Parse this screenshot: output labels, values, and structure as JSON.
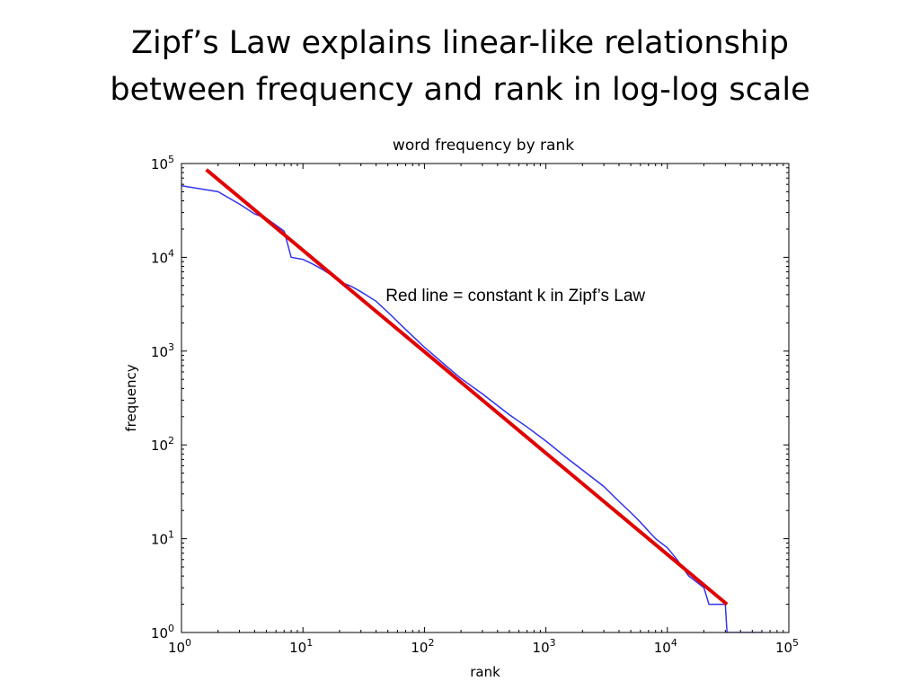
{
  "slide": {
    "title_line1": "Zipf’s Law explains linear-like relationship",
    "title_line2": "between frequency and rank in log-log scale"
  },
  "chart_data": {
    "type": "line",
    "title": "word frequency by rank",
    "xlabel": "rank",
    "ylabel": "frequency",
    "xscale": "log",
    "yscale": "log",
    "xlim": [
      1,
      100000
    ],
    "ylim": [
      1,
      100000
    ],
    "x_ticks": [
      {
        "base": "10",
        "exp": "0",
        "value": 1
      },
      {
        "base": "10",
        "exp": "1",
        "value": 10
      },
      {
        "base": "10",
        "exp": "2",
        "value": 100
      },
      {
        "base": "10",
        "exp": "3",
        "value": 1000
      },
      {
        "base": "10",
        "exp": "4",
        "value": 10000
      },
      {
        "base": "10",
        "exp": "5",
        "value": 100000
      }
    ],
    "y_ticks": [
      {
        "base": "10",
        "exp": "0",
        "value": 1
      },
      {
        "base": "10",
        "exp": "1",
        "value": 10
      },
      {
        "base": "10",
        "exp": "2",
        "value": 100
      },
      {
        "base": "10",
        "exp": "3",
        "value": 1000
      },
      {
        "base": "10",
        "exp": "4",
        "value": 10000
      },
      {
        "base": "10",
        "exp": "5",
        "value": 100000
      }
    ],
    "grid": false,
    "series": [
      {
        "color": "#3333ee",
        "x": [
          1,
          2,
          3,
          4,
          5,
          6,
          7,
          8,
          10,
          12,
          14,
          17,
          20,
          25,
          30,
          40,
          50,
          70,
          100,
          150,
          200,
          300,
          500,
          700,
          1000,
          1500,
          2000,
          3000,
          4000,
          5000,
          6000,
          7000,
          8000,
          10000,
          12000,
          15000,
          20000,
          22000,
          30000,
          31000,
          40000,
          60000
        ],
        "y": [
          58000,
          50000,
          37000,
          29000,
          26000,
          22000,
          19000,
          10000,
          9500,
          8500,
          7600,
          6500,
          5500,
          4900,
          4300,
          3400,
          2600,
          1700,
          1100,
          700,
          510,
          350,
          210,
          155,
          110,
          72,
          54,
          36,
          25,
          19,
          15,
          12,
          10,
          8,
          6,
          4,
          3,
          2,
          2,
          1,
          1,
          1
        ]
      },
      {
        "color": "#e00000",
        "x": [
          1.6,
          31000
        ],
        "y": [
          86000,
          2
        ]
      }
    ],
    "annotations": [
      {
        "text": "Red line = constant k in Zipf’s Law",
        "x": 48,
        "y": 2300
      }
    ]
  }
}
